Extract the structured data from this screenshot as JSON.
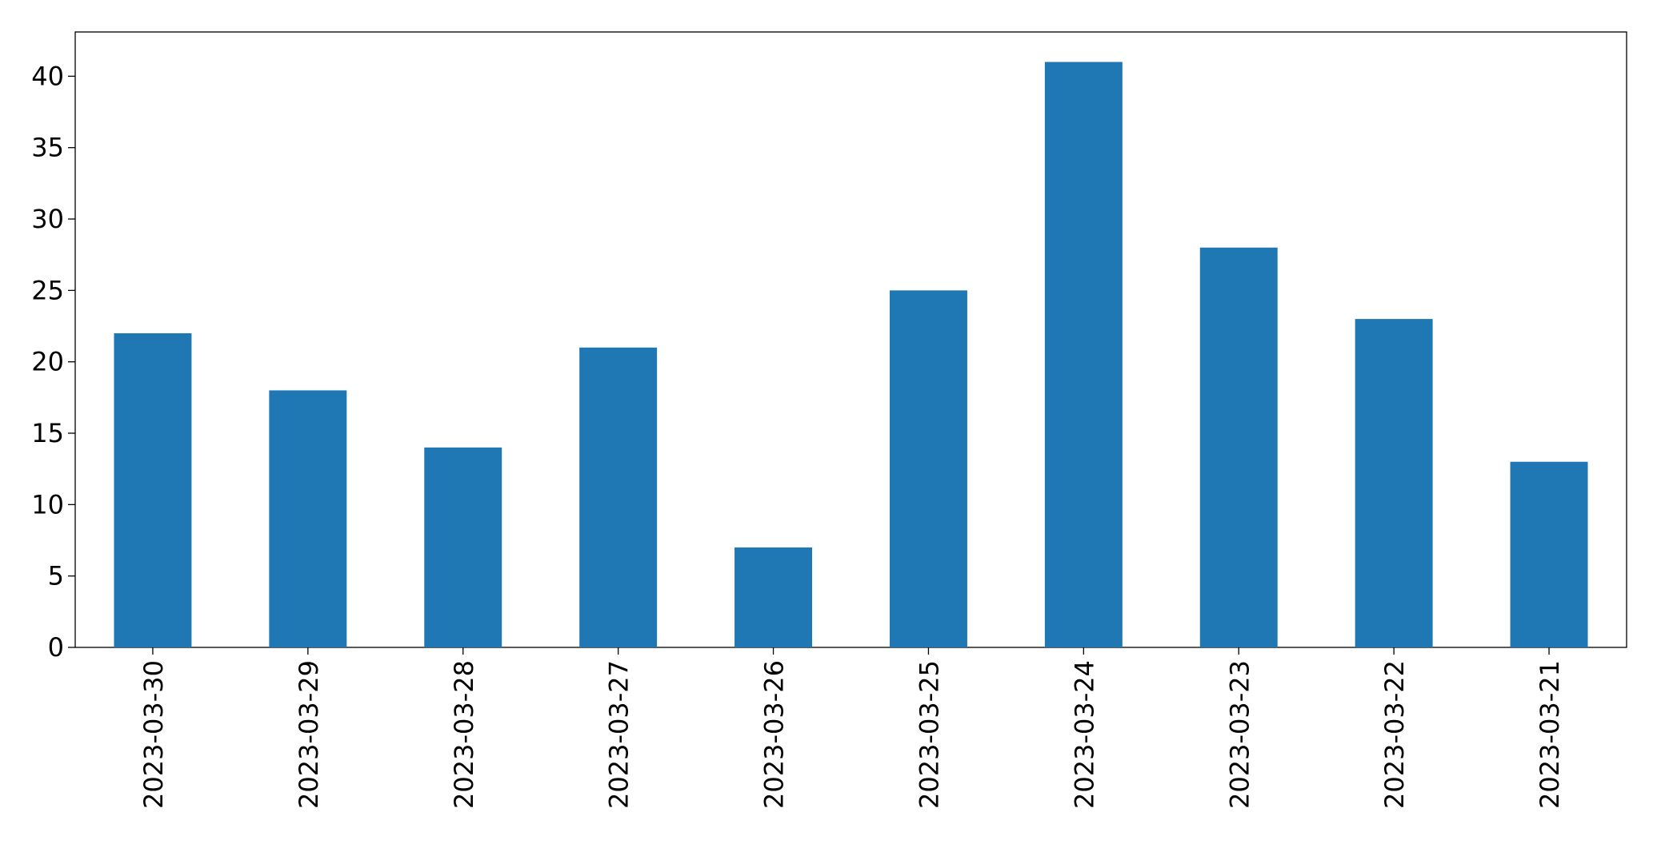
{
  "chart_data": {
    "type": "bar",
    "categories": [
      "2023-03-30",
      "2023-03-29",
      "2023-03-28",
      "2023-03-27",
      "2023-03-26",
      "2023-03-25",
      "2023-03-24",
      "2023-03-23",
      "2023-03-22",
      "2023-03-21"
    ],
    "values": [
      22,
      18,
      14,
      21,
      7,
      25,
      41,
      28,
      23,
      13
    ],
    "color": "#1f77b4",
    "ylim": [
      0,
      43.1
    ],
    "yticks": [
      0,
      5,
      10,
      15,
      20,
      25,
      30,
      35,
      40
    ],
    "grid": false
  }
}
